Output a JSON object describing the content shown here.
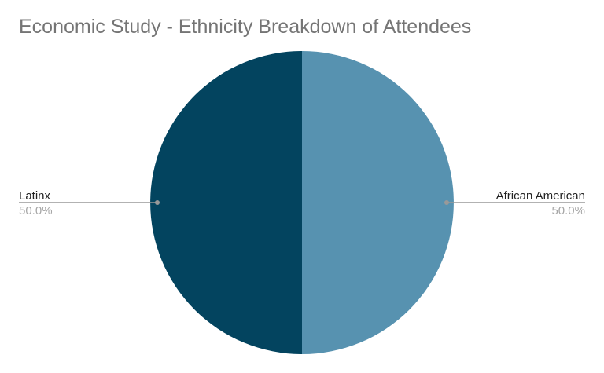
{
  "chart_data": {
    "type": "pie",
    "title": "Economic Study - Ethnicity Breakdown of Attendees",
    "slices": [
      {
        "label": "African American",
        "value": 50.0,
        "percent_label": "50.0%",
        "color": "#5792b0"
      },
      {
        "label": "Latinx",
        "value": 50.0,
        "percent_label": "50.0%",
        "color": "#03445f"
      }
    ],
    "legend": "none",
    "label_style": "leader-lines"
  }
}
